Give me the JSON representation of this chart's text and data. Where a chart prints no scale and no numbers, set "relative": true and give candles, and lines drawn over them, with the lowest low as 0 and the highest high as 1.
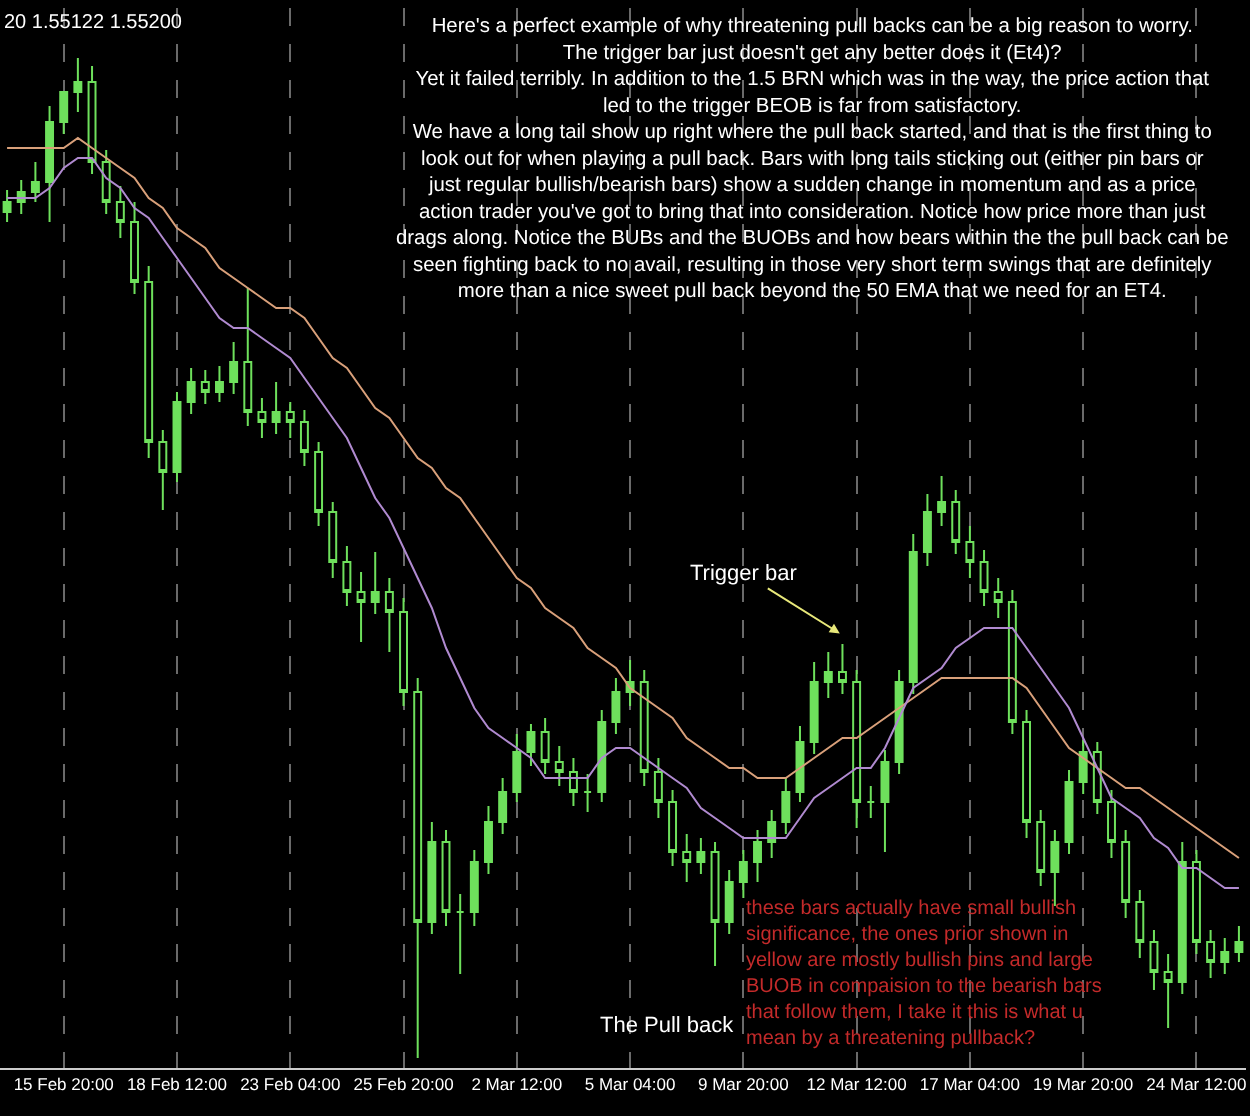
{
  "chart_data": {
    "type": "candlestick",
    "relative": true,
    "color": "#6ee05c",
    "categories": [
      null,
      null,
      null,
      null,
      "15 Feb 20:00",
      null,
      null,
      null,
      null,
      null,
      null,
      null,
      "18 Feb 12:00",
      null,
      null,
      null,
      null,
      null,
      null,
      null,
      "23 Feb 04:00",
      null,
      null,
      null,
      null,
      null,
      null,
      null,
      "25 Feb 20:00",
      null,
      null,
      null,
      null,
      null,
      null,
      null,
      "2 Mar 12:00",
      null,
      null,
      null,
      null,
      null,
      null,
      null,
      "5 Mar 04:00",
      null,
      null,
      null,
      null,
      null,
      null,
      null,
      "9 Mar 20:00",
      null,
      null,
      null,
      null,
      null,
      null,
      null,
      "12 Mar 12:00",
      null,
      null,
      null,
      null,
      null,
      null,
      null,
      "17 Mar 04:00",
      null,
      null,
      null,
      null,
      null,
      null,
      null,
      "19 Mar 20:00",
      null,
      null,
      null,
      null,
      null,
      null,
      null,
      "24 Mar 12:00",
      null,
      null,
      null
    ],
    "ohlc": [
      [
        0.846,
        0.868,
        0.836,
        0.856
      ],
      [
        0.856,
        0.878,
        0.844,
        0.866
      ],
      [
        0.866,
        0.896,
        0.856,
        0.876
      ],
      [
        0.876,
        0.952,
        0.836,
        0.936
      ],
      [
        0.936,
        0.966,
        0.924,
        0.966
      ],
      [
        0.966,
        1.0,
        0.946,
        0.976
      ],
      [
        0.976,
        0.992,
        0.884,
        0.896
      ],
      [
        0.896,
        0.908,
        0.844,
        0.856
      ],
      [
        0.856,
        0.872,
        0.82,
        0.836
      ],
      [
        0.836,
        0.856,
        0.764,
        0.776
      ],
      [
        0.776,
        0.792,
        0.6,
        0.616
      ],
      [
        0.616,
        0.628,
        0.548,
        0.586
      ],
      [
        0.586,
        0.666,
        0.576,
        0.656
      ],
      [
        0.656,
        0.69,
        0.644,
        0.676
      ],
      [
        0.676,
        0.688,
        0.654,
        0.666
      ],
      [
        0.666,
        0.692,
        0.656,
        0.676
      ],
      [
        0.676,
        0.716,
        0.664,
        0.696
      ],
      [
        0.696,
        0.77,
        0.632,
        0.646
      ],
      [
        0.646,
        0.66,
        0.62,
        0.636
      ],
      [
        0.636,
        0.676,
        0.624,
        0.646
      ],
      [
        0.646,
        0.656,
        0.62,
        0.636
      ],
      [
        0.636,
        0.648,
        0.592,
        0.606
      ],
      [
        0.606,
        0.616,
        0.532,
        0.546
      ],
      [
        0.546,
        0.556,
        0.48,
        0.496
      ],
      [
        0.496,
        0.512,
        0.452,
        0.466
      ],
      [
        0.466,
        0.486,
        0.416,
        0.456
      ],
      [
        0.456,
        0.506,
        0.444,
        0.466
      ],
      [
        0.466,
        0.48,
        0.406,
        0.446
      ],
      [
        0.446,
        0.46,
        0.352,
        0.366
      ],
      [
        0.366,
        0.38,
        0.0,
        0.136
      ],
      [
        0.136,
        0.236,
        0.124,
        0.216
      ],
      [
        0.216,
        0.228,
        0.132,
        0.146
      ],
      [
        0.146,
        0.164,
        0.084,
        0.146
      ],
      [
        0.146,
        0.208,
        0.132,
        0.196
      ],
      [
        0.196,
        0.252,
        0.184,
        0.236
      ],
      [
        0.236,
        0.28,
        0.224,
        0.266
      ],
      [
        0.266,
        0.324,
        0.256,
        0.306
      ],
      [
        0.306,
        0.334,
        0.292,
        0.326
      ],
      [
        0.326,
        0.34,
        0.284,
        0.296
      ],
      [
        0.296,
        0.312,
        0.272,
        0.286
      ],
      [
        0.286,
        0.3,
        0.252,
        0.266
      ],
      [
        0.266,
        0.284,
        0.246,
        0.266
      ],
      [
        0.266,
        0.348,
        0.256,
        0.336
      ],
      [
        0.336,
        0.38,
        0.324,
        0.366
      ],
      [
        0.366,
        0.398,
        0.352,
        0.376
      ],
      [
        0.376,
        0.388,
        0.272,
        0.286
      ],
      [
        0.286,
        0.3,
        0.24,
        0.256
      ],
      [
        0.256,
        0.268,
        0.192,
        0.206
      ],
      [
        0.206,
        0.224,
        0.176,
        0.196
      ],
      [
        0.196,
        0.22,
        0.184,
        0.206
      ],
      [
        0.206,
        0.216,
        0.092,
        0.136
      ],
      [
        0.136,
        0.188,
        0.124,
        0.176
      ],
      [
        0.176,
        0.208,
        0.16,
        0.196
      ],
      [
        0.196,
        0.228,
        0.176,
        0.216
      ],
      [
        0.216,
        0.248,
        0.2,
        0.236
      ],
      [
        0.236,
        0.28,
        0.224,
        0.266
      ],
      [
        0.266,
        0.332,
        0.256,
        0.316
      ],
      [
        0.316,
        0.396,
        0.304,
        0.376
      ],
      [
        0.376,
        0.406,
        0.36,
        0.386
      ],
      [
        0.386,
        0.414,
        0.364,
        0.376
      ],
      [
        0.376,
        0.388,
        0.23,
        0.256
      ],
      [
        0.256,
        0.272,
        0.24,
        0.256
      ],
      [
        0.256,
        0.308,
        0.206,
        0.296
      ],
      [
        0.296,
        0.388,
        0.284,
        0.376
      ],
      [
        0.376,
        0.524,
        0.364,
        0.506
      ],
      [
        0.506,
        0.564,
        0.492,
        0.546
      ],
      [
        0.546,
        0.582,
        0.532,
        0.556
      ],
      [
        0.556,
        0.568,
        0.504,
        0.516
      ],
      [
        0.516,
        0.532,
        0.48,
        0.496
      ],
      [
        0.496,
        0.508,
        0.452,
        0.466
      ],
      [
        0.466,
        0.48,
        0.44,
        0.456
      ],
      [
        0.456,
        0.468,
        0.324,
        0.336
      ],
      [
        0.336,
        0.348,
        0.22,
        0.236
      ],
      [
        0.236,
        0.248,
        0.172,
        0.186
      ],
      [
        0.186,
        0.228,
        0.152,
        0.216
      ],
      [
        0.216,
        0.288,
        0.204,
        0.276
      ],
      [
        0.276,
        0.318,
        0.264,
        0.306
      ],
      [
        0.306,
        0.316,
        0.244,
        0.256
      ],
      [
        0.256,
        0.268,
        0.2,
        0.216
      ],
      [
        0.216,
        0.228,
        0.14,
        0.156
      ],
      [
        0.156,
        0.168,
        0.1,
        0.116
      ],
      [
        0.116,
        0.128,
        0.068,
        0.086
      ],
      [
        0.086,
        0.104,
        0.03,
        0.076
      ],
      [
        0.076,
        0.216,
        0.064,
        0.196
      ],
      [
        0.196,
        0.208,
        0.104,
        0.116
      ],
      [
        0.116,
        0.128,
        0.08,
        0.096
      ],
      [
        0.096,
        0.12,
        0.084,
        0.106
      ],
      [
        0.106,
        0.132,
        0.096,
        0.116
      ]
    ],
    "series": [
      {
        "type": "line",
        "color": "#d9a07a",
        "values": [
          0.91,
          0.91,
          0.91,
          0.91,
          0.91,
          0.92,
          0.91,
          0.9,
          0.89,
          0.88,
          0.86,
          0.85,
          0.83,
          0.82,
          0.81,
          0.79,
          0.78,
          0.77,
          0.76,
          0.75,
          0.75,
          0.74,
          0.72,
          0.7,
          0.69,
          0.67,
          0.65,
          0.64,
          0.62,
          0.6,
          0.59,
          0.57,
          0.56,
          0.54,
          0.52,
          0.5,
          0.48,
          0.47,
          0.45,
          0.44,
          0.43,
          0.41,
          0.4,
          0.39,
          0.37,
          0.36,
          0.35,
          0.34,
          0.32,
          0.31,
          0.3,
          0.29,
          0.29,
          0.28,
          0.28,
          0.28,
          0.29,
          0.3,
          0.31,
          0.32,
          0.32,
          0.33,
          0.34,
          0.35,
          0.36,
          0.37,
          0.38,
          0.38,
          0.38,
          0.38,
          0.38,
          0.38,
          0.37,
          0.35,
          0.33,
          0.31,
          0.3,
          0.29,
          0.28,
          0.27,
          0.27,
          0.26,
          0.25,
          0.24,
          0.23,
          0.22,
          0.21,
          0.2
        ]
      },
      {
        "type": "line",
        "color": "#b08ad0",
        "values": [
          0.86,
          0.86,
          0.86,
          0.87,
          0.89,
          0.9,
          0.9,
          0.88,
          0.87,
          0.85,
          0.84,
          0.82,
          0.8,
          0.78,
          0.76,
          0.74,
          0.73,
          0.73,
          0.72,
          0.71,
          0.7,
          0.68,
          0.66,
          0.64,
          0.62,
          0.59,
          0.56,
          0.54,
          0.51,
          0.48,
          0.45,
          0.41,
          0.38,
          0.35,
          0.33,
          0.32,
          0.31,
          0.3,
          0.28,
          0.28,
          0.28,
          0.28,
          0.3,
          0.31,
          0.31,
          0.3,
          0.29,
          0.28,
          0.27,
          0.25,
          0.24,
          0.23,
          0.22,
          0.22,
          0.22,
          0.22,
          0.24,
          0.26,
          0.27,
          0.28,
          0.29,
          0.29,
          0.31,
          0.34,
          0.37,
          0.38,
          0.39,
          0.41,
          0.42,
          0.43,
          0.43,
          0.43,
          0.41,
          0.39,
          0.37,
          0.35,
          0.32,
          0.29,
          0.26,
          0.25,
          0.24,
          0.22,
          0.21,
          0.19,
          0.19,
          0.18,
          0.17,
          0.17
        ]
      }
    ],
    "grid": "x",
    "annotations": [
      "20 1.55122 1.55200",
      "Here's a perfect example of why threatening pull backs can be a big reason to worry.\nThe trigger bar just doesn't get any better does it (Et4)?\nYet it failed terribly. In addition to the 1.5 BRN which was in the way, the price action that\nled to the trigger BEOB is far from satisfactory.\nWe have a long tail show up right where the pull back started, and that is the first thing to\nlook out for when playing a pull back. Bars with long tails sticking out (either pin bars or\njust regular bullish/bearish bars) show a sudden change in momentum and as a price\naction trader you've got to bring that into consideration. Notice how price more than just\ndrags along. Notice the BUBs and the BUOBs and how bears within the the pull back can be\nseen fighting back to no avail, resulting in those very short term swings that are definitely\nmore than a nice sweet pull back beyond the 50 EMA that we need for an ET4.",
      "Trigger bar",
      "The Pull back",
      "these bars actually have small bullish\nsignificance, the ones prior shown in\nyellow are mostly bullish pins and large\nBUOB in compaision to the bearish bars\nthat follow them, I take it this is what u\nmean by a threatening pullback?"
    ]
  }
}
